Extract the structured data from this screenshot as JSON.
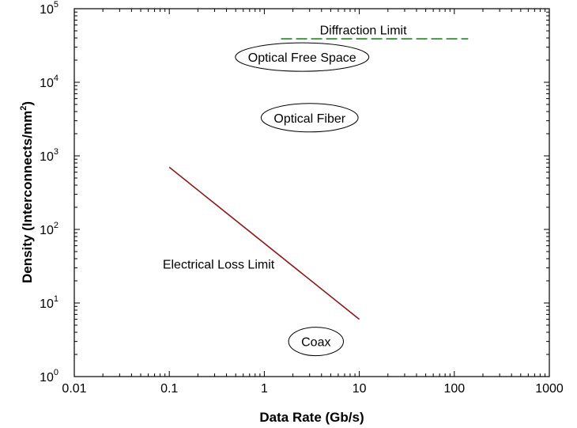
{
  "chart_data": {
    "type": "line",
    "xlabel": "Data Rate (Gb/s)",
    "ylabel": "Density (Interconnects/mm",
    "ylabel_sup": "2",
    "ylabel_close": ")",
    "xscale": "log",
    "yscale": "log",
    "xlim": [
      0.01,
      1000
    ],
    "ylim": [
      1,
      100000
    ],
    "grid": false,
    "x_ticks": [
      {
        "value": 0.01,
        "label": "0.01"
      },
      {
        "value": 0.1,
        "label": "0.1"
      },
      {
        "value": 1,
        "label": "1"
      },
      {
        "value": 10,
        "label": "10"
      },
      {
        "value": 100,
        "label": "100"
      },
      {
        "value": 1000,
        "label": "1000"
      }
    ],
    "y_ticks": [
      {
        "value": 1,
        "base": "10",
        "exp": "0"
      },
      {
        "value": 10,
        "base": "10",
        "exp": "1"
      },
      {
        "value": 100,
        "base": "10",
        "exp": "2"
      },
      {
        "value": 1000,
        "base": "10",
        "exp": "3"
      },
      {
        "value": 10000,
        "base": "10",
        "exp": "4"
      },
      {
        "value": 100000,
        "base": "10",
        "exp": "5"
      }
    ],
    "series": [
      {
        "x": [
          0.1,
          10
        ],
        "y": [
          700,
          6
        ],
        "color": "#8b1a1a",
        "style": "solid"
      },
      {
        "x": [
          1.5,
          140
        ],
        "y": [
          39000,
          39000
        ],
        "color": "#1e8a1e",
        "style": "dashed"
      }
    ],
    "annotations": [
      {
        "text": "Diffraction Limit",
        "x": 11,
        "y": 52000,
        "enclosed": false
      },
      {
        "text": "Optical Free Space",
        "x": 2.5,
        "y": 22000,
        "enclosed": true
      },
      {
        "text": "Optical Fiber",
        "x": 3,
        "y": 3300,
        "enclosed": true
      },
      {
        "text": "Electrical Loss Limit",
        "x": 0.33,
        "y": 34,
        "enclosed": false
      },
      {
        "text": "Coax",
        "x": 3.5,
        "y": 3,
        "enclosed": true
      }
    ]
  }
}
